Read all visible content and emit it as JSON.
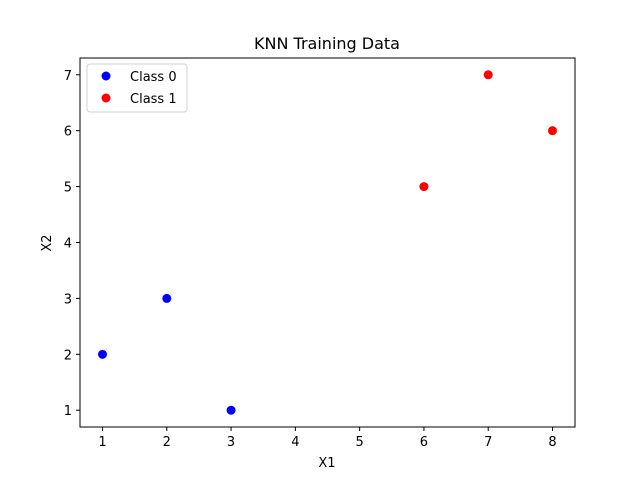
{
  "chart_data": {
    "type": "scatter",
    "title": "KNN Training Data",
    "xlabel": "X1",
    "ylabel": "X2",
    "xlim": [
      0.65,
      8.35
    ],
    "ylim": [
      0.7,
      7.3
    ],
    "xticks": [
      1,
      2,
      3,
      4,
      5,
      6,
      7,
      8
    ],
    "yticks": [
      1,
      2,
      3,
      4,
      5,
      6,
      7
    ],
    "grid": false,
    "legend_position": "upper left",
    "series": [
      {
        "name": "Class 0",
        "color": "#0000ff",
        "points": [
          {
            "x": 1,
            "y": 2
          },
          {
            "x": 2,
            "y": 3
          },
          {
            "x": 3,
            "y": 1
          }
        ]
      },
      {
        "name": "Class 1",
        "color": "#ff0000",
        "points": [
          {
            "x": 6,
            "y": 5
          },
          {
            "x": 7,
            "y": 7
          },
          {
            "x": 8,
            "y": 6
          }
        ]
      }
    ]
  }
}
